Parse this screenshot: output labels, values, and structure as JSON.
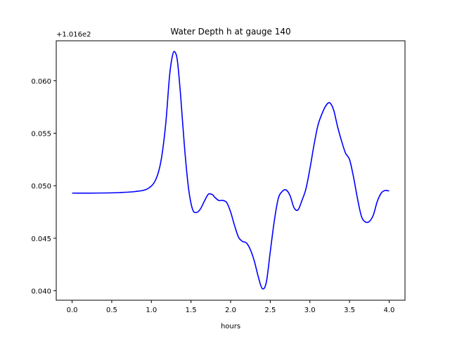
{
  "chart_data": {
    "type": "line",
    "title": "Water Depth h at gauge 140",
    "xlabel": "hours",
    "ylabel": "",
    "y_offset_label": "+1.016e2",
    "xlim": [
      -0.2,
      4.2
    ],
    "ylim": [
      0.0391,
      0.0638
    ],
    "xticks": [
      0.0,
      0.5,
      1.0,
      1.5,
      2.0,
      2.5,
      3.0,
      3.5,
      4.0
    ],
    "xtick_labels": [
      "0.0",
      "0.5",
      "1.0",
      "1.5",
      "2.0",
      "2.5",
      "3.0",
      "3.5",
      "4.0"
    ],
    "yticks": [
      0.04,
      0.045,
      0.05,
      0.055,
      0.06
    ],
    "ytick_labels": [
      "0.040",
      "0.045",
      "0.050",
      "0.055",
      "0.060"
    ],
    "grid": false,
    "series": [
      {
        "color": "#0000ff",
        "x": [
          0.0,
          0.3,
          0.6,
          0.8,
          0.95,
          1.05,
          1.12,
          1.18,
          1.23,
          1.27,
          1.3,
          1.33,
          1.37,
          1.42,
          1.47,
          1.52,
          1.57,
          1.62,
          1.67,
          1.72,
          1.77,
          1.8,
          1.85,
          1.9,
          1.95,
          2.0,
          2.05,
          2.1,
          2.15,
          2.2,
          2.25,
          2.3,
          2.35,
          2.4,
          2.45,
          2.5,
          2.55,
          2.6,
          2.65,
          2.7,
          2.75,
          2.8,
          2.85,
          2.9,
          2.95,
          3.0,
          3.05,
          3.1,
          3.15,
          3.2,
          3.25,
          3.3,
          3.35,
          3.4,
          3.45,
          3.5,
          3.55,
          3.6,
          3.65,
          3.7,
          3.75,
          3.8,
          3.85,
          3.9,
          3.95,
          4.0
        ],
        "y": [
          0.0493,
          0.0493,
          0.04935,
          0.04945,
          0.0497,
          0.0505,
          0.0523,
          0.0558,
          0.0605,
          0.0625,
          0.0627,
          0.0618,
          0.0585,
          0.0535,
          0.0497,
          0.04775,
          0.04745,
          0.0478,
          0.04855,
          0.0492,
          0.04915,
          0.0489,
          0.0486,
          0.0486,
          0.0484,
          0.0475,
          0.0462,
          0.0451,
          0.0447,
          0.04455,
          0.0439,
          0.0428,
          0.0413,
          0.0402,
          0.0408,
          0.0437,
          0.0466,
          0.04875,
          0.04945,
          0.0496,
          0.04905,
          0.0479,
          0.0477,
          0.0486,
          0.0497,
          0.0516,
          0.0538,
          0.0557,
          0.0568,
          0.0576,
          0.0579,
          0.0572,
          0.0556,
          0.05425,
          0.0531,
          0.0525,
          0.05085,
          0.0488,
          0.0471,
          0.04655,
          0.0466,
          0.0472,
          0.0485,
          0.0493,
          0.04955,
          0.0495
        ]
      }
    ]
  }
}
